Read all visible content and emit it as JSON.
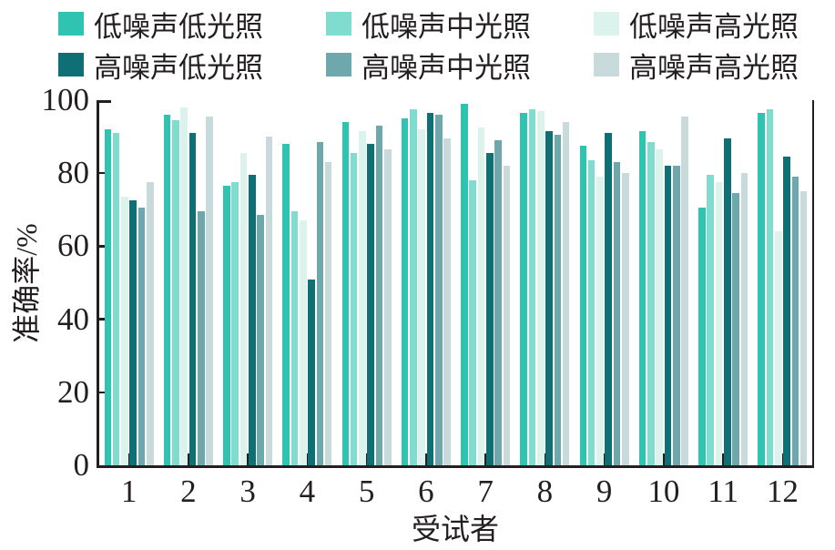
{
  "figure": {
    "background": "#ffffff",
    "axis_color": "#231f20",
    "text_color": "#231f20"
  },
  "chart_data": {
    "type": "bar",
    "title": "",
    "xlabel": "受试者",
    "ylabel": "准确率/%",
    "ylim": [
      0,
      100
    ],
    "yticks": [
      0,
      20,
      40,
      60,
      80,
      100
    ],
    "categories": [
      "1",
      "2",
      "3",
      "4",
      "5",
      "6",
      "7",
      "8",
      "9",
      "10",
      "11",
      "12"
    ],
    "grid": false,
    "legend_position": "top",
    "legend_rows": 2,
    "legend_columns": 3,
    "series": [
      {
        "name": "低噪声低光照",
        "color": "#2EC4B1",
        "values": [
          92,
          96,
          76.5,
          88,
          94,
          95,
          99,
          96.5,
          87.5,
          91.5,
          70.5,
          96.5
        ]
      },
      {
        "name": "低噪声中光照",
        "color": "#7FDCCF",
        "values": [
          91,
          94.5,
          77.5,
          69.5,
          85.5,
          97.5,
          78,
          97.5,
          83.5,
          88.5,
          79.5,
          97.5
        ]
      },
      {
        "name": "低噪声高光照",
        "color": "#DCF2ED",
        "values": [
          73.5,
          98,
          85.5,
          67,
          91.5,
          92,
          92.5,
          97,
          79,
          86.5,
          77.5,
          64
        ]
      },
      {
        "name": "高噪声低光照",
        "color": "#0E6F74",
        "values": [
          72.5,
          91,
          79.5,
          51,
          88,
          96.5,
          85.5,
          91.5,
          91,
          82,
          89.5,
          84.5
        ]
      },
      {
        "name": "高噪声中光照",
        "color": "#6FA8AC",
        "values": [
          70.5,
          69.5,
          68.5,
          88.5,
          93,
          96,
          89,
          90.5,
          83,
          82,
          74.5,
          79
        ]
      },
      {
        "name": "高噪声高光照",
        "color": "#C9DADC",
        "values": [
          77.5,
          95.5,
          90,
          83,
          86.5,
          89.5,
          82,
          94,
          80,
          95.5,
          80,
          75
        ]
      }
    ]
  }
}
